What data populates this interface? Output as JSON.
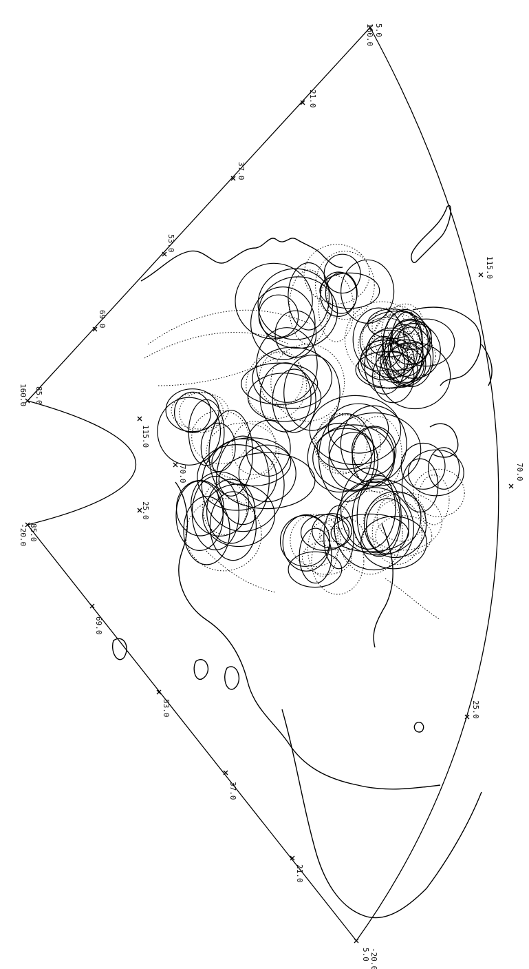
{
  "map": {
    "corner_labels": {
      "top_right_lat": "5.0",
      "top_right_lon": "160.0",
      "top_left_lat": "85.0",
      "top_left_lon": "160.0",
      "left_upper_lon": "-20.0",
      "left_upper_lat": "85.0",
      "bottom_left_lat": "5.0",
      "bottom_left_lon": "-20.0"
    },
    "right_edge_lat_labels": [
      "21.0",
      "37.0",
      "53.0",
      "69.0"
    ],
    "left_edge_lat_labels": [
      "69.0",
      "53.0",
      "37.0",
      "21.0"
    ],
    "inner_arc_lon_labels": [
      "115.0",
      "70.0",
      "25.0"
    ],
    "outer_arc_lon_labels": [
      "115.0",
      "70.0",
      "25.0"
    ]
  }
}
